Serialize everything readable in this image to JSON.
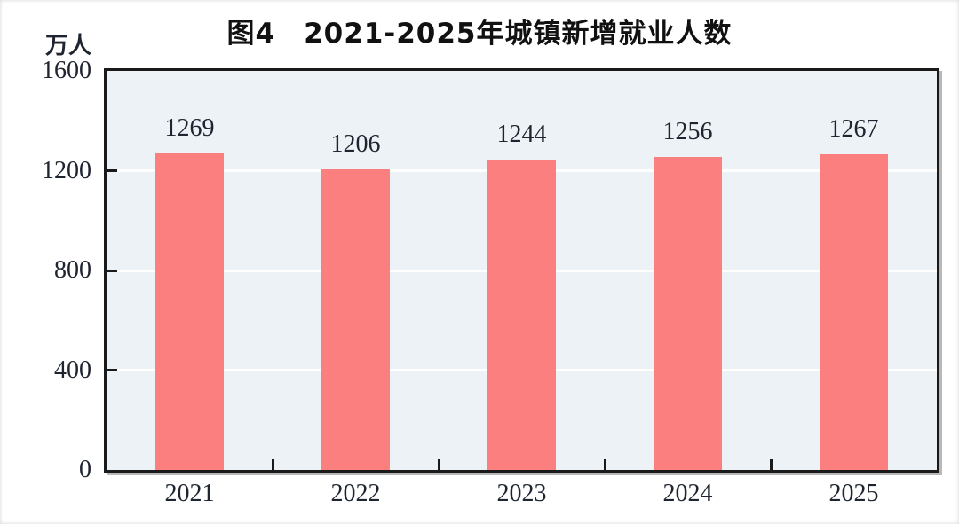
{
  "figure": {
    "title": "图4　2021-2025年城镇新增就业人数",
    "unit_label": "万人"
  },
  "colors": {
    "bar": "#FC7F7F",
    "plot_bg": "#EDF2F6",
    "frame": "#1A1A1A",
    "gridline": "#FFFFFF",
    "text": "#1E2430",
    "background": "#FFFFFF"
  },
  "chart_data": {
    "type": "bar",
    "title": "图4　2021-2025年城镇新增就业人数",
    "categories": [
      "2021",
      "2022",
      "2023",
      "2024",
      "2025"
    ],
    "values": [
      1269,
      1206,
      1244,
      1256,
      1267
    ],
    "xlabel": "",
    "ylabel": "万人",
    "ylim": [
      0,
      1600
    ],
    "yticks": [
      0,
      400,
      800,
      1200,
      1600
    ],
    "grid": "horizontal white gridlines at 400/800/1200",
    "legend_position": "none",
    "value_labels": "above bars"
  }
}
